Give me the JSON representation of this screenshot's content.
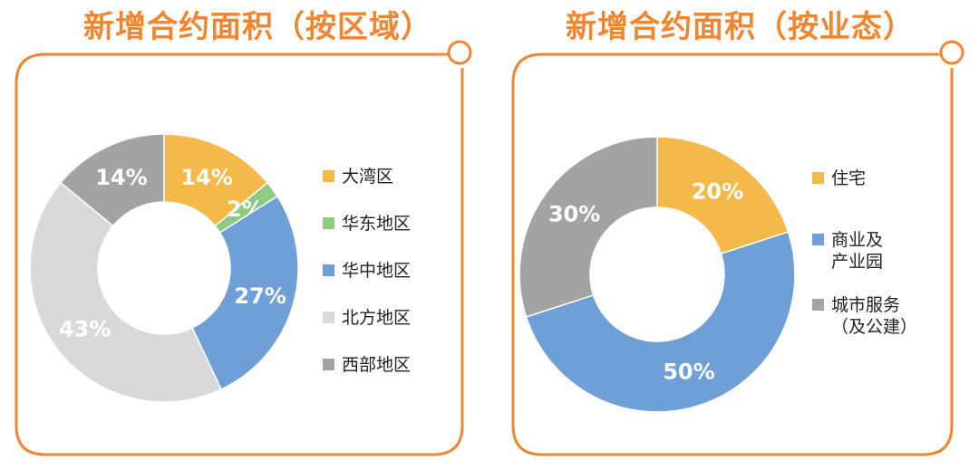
{
  "panels": [
    {
      "title": "新增合约面积（按区域）",
      "chart_data": {
        "type": "pie",
        "title": "新增合约面积（按区域）",
        "labels": [
          "大湾区",
          "华东地区",
          "华中地区",
          "北方地区",
          "西部地区"
        ],
        "values": [
          14,
          2,
          27,
          43,
          14
        ],
        "value_labels": [
          "14%",
          "2%",
          "27%",
          "43%",
          "14%"
        ],
        "colors": [
          "#F5B94A",
          "#8FCB82",
          "#6E9FD6",
          "#D9D9D9",
          "#A3A3A3"
        ],
        "donut": true,
        "legend_position": "right"
      }
    },
    {
      "title": "新增合约面积（按业态）",
      "chart_data": {
        "type": "pie",
        "title": "新增合约面积（按业态）",
        "labels": [
          "住宅",
          "商业及\n产业园",
          "城市服务\n（及公建）"
        ],
        "values": [
          20,
          50,
          30
        ],
        "value_labels": [
          "20%",
          "50%",
          "30%"
        ],
        "colors": [
          "#F5B94A",
          "#6E9FD6",
          "#A3A3A3"
        ],
        "donut": true,
        "legend_position": "right"
      }
    }
  ],
  "style": {
    "accent": "#F2852E"
  }
}
